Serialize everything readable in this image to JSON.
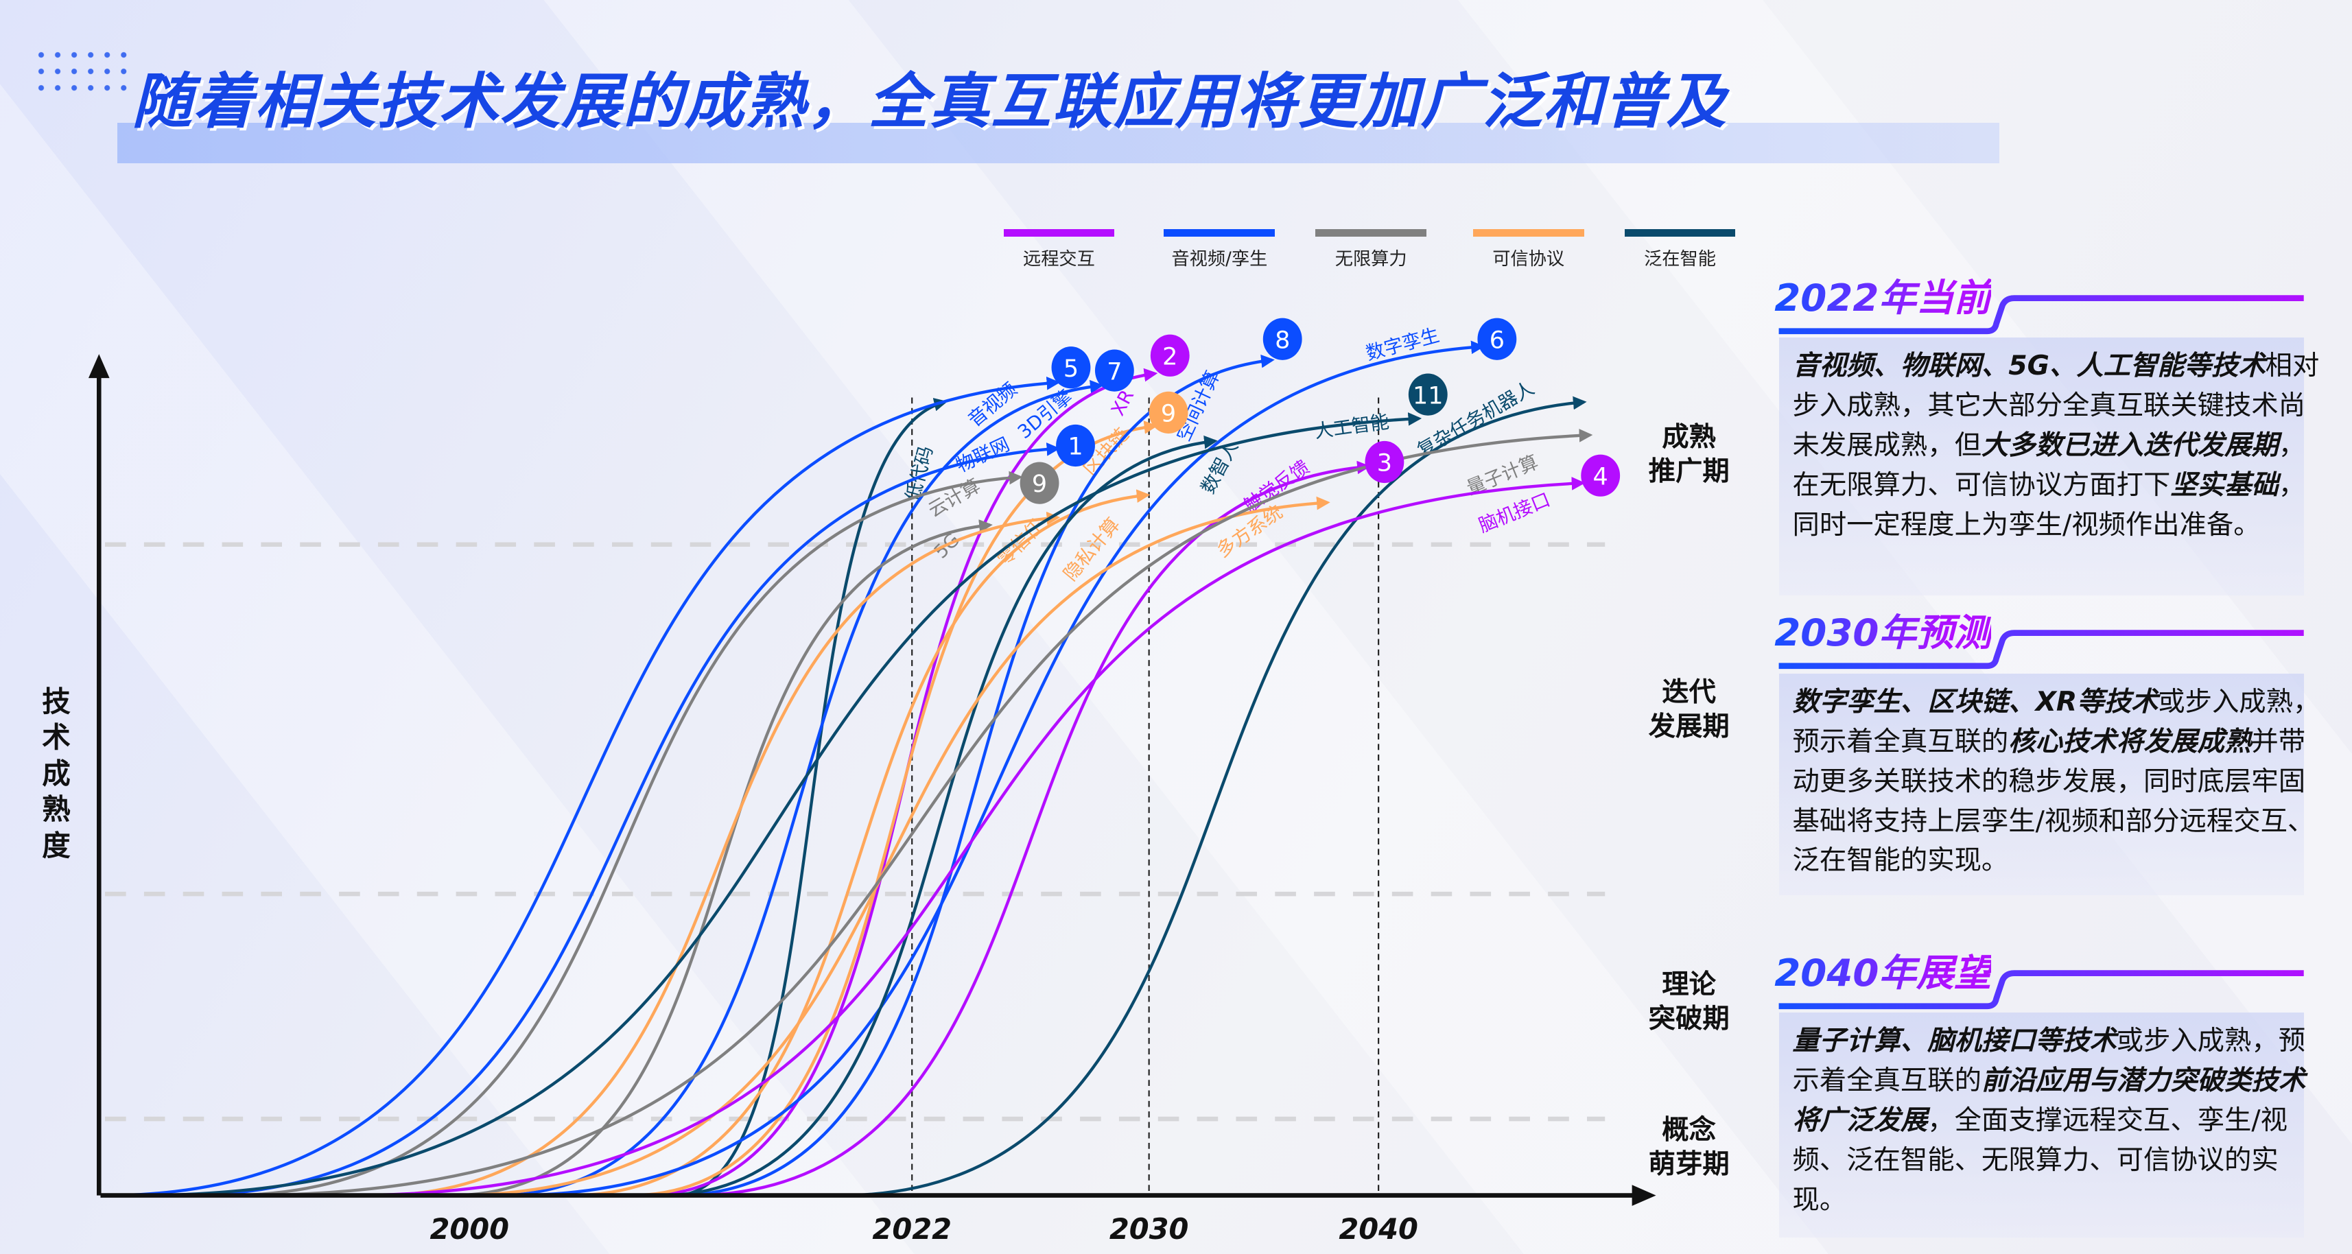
{
  "title": "随着相关技术发展的成熟，全真互联应用将更加广泛和普及",
  "y_axis_label": "技术成熟度",
  "x_ticks": [
    "2000",
    "2022",
    "2030",
    "2040"
  ],
  "stages": [
    "成熟\n推广期",
    "迭代\n发展期",
    "理论\n突破期",
    "概念\n萌芽期"
  ],
  "legend": [
    {
      "label": "远程交互",
      "color": "#b40dff"
    },
    {
      "label": "音视频/孪生",
      "color": "#0b4dff"
    },
    {
      "label": "无限算力",
      "color": "#808080"
    },
    {
      "label": "可信协议",
      "color": "#ffa75a"
    },
    {
      "label": "泛在智能",
      "color": "#0a4a6c"
    }
  ],
  "technologies": [
    {
      "name": "低代码",
      "category": "泛在智能"
    },
    {
      "name": "音视频",
      "category": "音视频/孪生",
      "badge": "5"
    },
    {
      "name": "3D引擎",
      "category": "音视频/孪生",
      "badge": "7"
    },
    {
      "name": "物联网",
      "category": "音视频/孪生",
      "badge": "1"
    },
    {
      "name": "XR",
      "category": "远程交互",
      "badge": "2"
    },
    {
      "name": "区块链",
      "category": "可信协议",
      "badge": "9"
    },
    {
      "name": "云计算",
      "category": "无限算力",
      "badge": "9"
    },
    {
      "name": "5G",
      "category": "无限算力"
    },
    {
      "name": "零信任",
      "category": "可信协议"
    },
    {
      "name": "隐私计算",
      "category": "可信协议"
    },
    {
      "name": "空间计算",
      "category": "音视频/孪生",
      "badge": "8"
    },
    {
      "name": "数字孪生",
      "category": "音视频/孪生",
      "badge": "6"
    },
    {
      "name": "人工智能",
      "category": "泛在智能",
      "badge": "11"
    },
    {
      "name": "数智人",
      "category": "泛在智能"
    },
    {
      "name": "触觉反馈",
      "category": "远程交互",
      "badge": "3"
    },
    {
      "name": "多方系统",
      "category": "可信协议"
    },
    {
      "name": "复杂任务机器人",
      "category": "泛在智能"
    },
    {
      "name": "量子计算",
      "category": "无限算力"
    },
    {
      "name": "脑机接口",
      "category": "远程交互",
      "badge": "4"
    }
  ],
  "panels": [
    {
      "heading": "2022年当前",
      "segments": [
        {
          "t": "音视频、物联网、5G、人工智能等技术",
          "b": true
        },
        {
          "t": "相对步入成熟，其它大部分全真互联关键技术尚未发展成熟，但",
          "b": false
        },
        {
          "t": "大多数已进入迭代发展期",
          "b": true
        },
        {
          "t": "，在无限算力、可信协议方面打下",
          "b": false
        },
        {
          "t": "坚实基础",
          "b": true
        },
        {
          "t": "，同时一定程度上为孪生/视频作出准备。",
          "b": false
        }
      ]
    },
    {
      "heading": "2030年预测",
      "segments": [
        {
          "t": "数字孪生、区块链、XR等技术",
          "b": true
        },
        {
          "t": "或步入成熟，预示着全真互联的",
          "b": false
        },
        {
          "t": "核心技术将发展成熟",
          "b": true
        },
        {
          "t": "并带动更多关联技术的稳步发展，同时底层牢固基础将支持上层孪生/视频和部分远程交互、泛在智能的实现。",
          "b": false
        }
      ]
    },
    {
      "heading": "2040年展望",
      "segments": [
        {
          "t": "量子计算、脑机接口等技术",
          "b": true
        },
        {
          "t": "或步入成熟，预示着全真互联的",
          "b": false
        },
        {
          "t": "前沿应用与潜力突破类技术将广泛发展",
          "b": true
        },
        {
          "t": "，全面支撑远程交互、孪生/视频、泛在智能、无限算力、可信协议的实现。",
          "b": false
        }
      ]
    }
  ]
}
